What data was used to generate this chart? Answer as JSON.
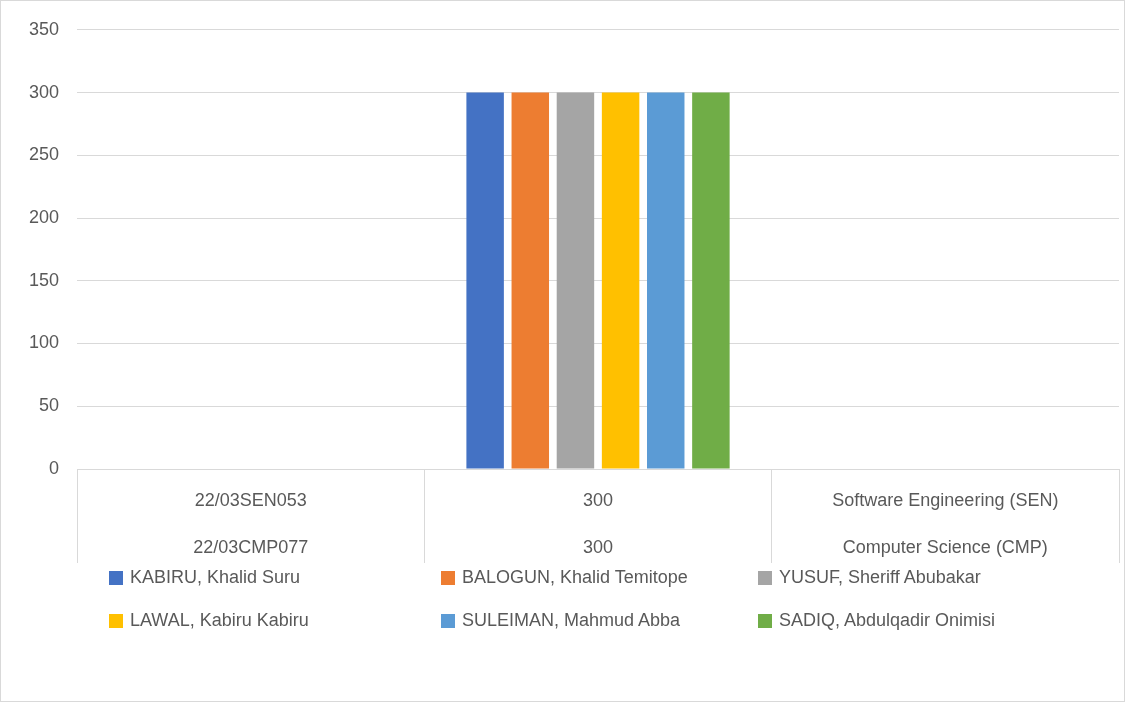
{
  "chart_data": {
    "type": "bar",
    "categories": [
      "22/03SEN053\n22/03CMP077",
      "300\n300",
      "Software Engineering (SEN)\nComputer Science (CMP)"
    ],
    "series": [
      {
        "name": "KABIRU, Khalid Suru",
        "color": "#4472c4",
        "values": [
          null,
          300,
          null
        ]
      },
      {
        "name": "BALOGUN, Khalid Temitope",
        "color": "#ed7d31",
        "values": [
          null,
          300,
          null
        ]
      },
      {
        "name": "YUSUF, Sheriff Abubakar",
        "color": "#a5a5a5",
        "values": [
          null,
          300,
          null
        ]
      },
      {
        "name": "LAWAL, Kabiru Kabiru",
        "color": "#ffc000",
        "values": [
          null,
          300,
          null
        ]
      },
      {
        "name": "SULEIMAN, Mahmud Abba",
        "color": "#5b9bd5",
        "values": [
          null,
          300,
          null
        ]
      },
      {
        "name": "SADIQ, Abdulqadir Onimisi",
        "color": "#70ad47",
        "values": [
          null,
          300,
          null
        ]
      }
    ],
    "ylim": [
      0,
      350
    ],
    "yticks": [
      0,
      50,
      100,
      150,
      200,
      250,
      300,
      350
    ],
    "grid": "y",
    "legend": "bottom"
  }
}
